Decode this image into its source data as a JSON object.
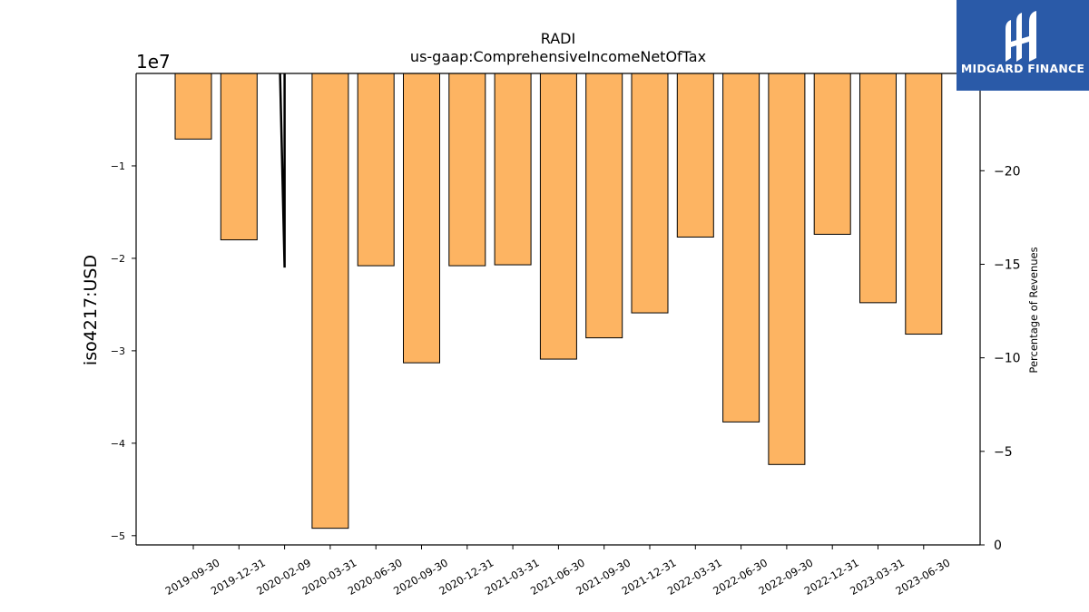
{
  "chart_data": {
    "type": "bar",
    "title": "RADI",
    "subtitle": "us-gaap:ComprehensiveIncomeNetOfTax",
    "ylabel": "iso4217:USD",
    "y_offset_label": "1e7",
    "y2label": "Percentage of Revenues",
    "categories": [
      "2019-09-30",
      "2019-12-31",
      "2020-02-09",
      "2020-03-31",
      "2020-06-30",
      "2020-09-30",
      "2020-12-31",
      "2021-03-31",
      "2021-06-30",
      "2021-09-30",
      "2021-12-31",
      "2022-03-31",
      "2022-06-30",
      "2022-09-30",
      "2022-12-31",
      "2023-03-31",
      "2023-06-30"
    ],
    "values": [
      -7100000,
      -18000000,
      null,
      -49200000,
      -20800000,
      -31300000,
      -20800000,
      -20700000,
      -30900000,
      -28600000,
      -25900000,
      -17700000,
      -37700000,
      -42300000,
      -17400000,
      -24800000,
      -28200000
    ],
    "line_series": {
      "x": [
        "2020-02-09",
        "2020-02-09"
      ],
      "values": [
        0,
        -21000000
      ]
    },
    "ylim": [
      -51000000.0,
      0
    ],
    "yticks": [
      -1,
      -2,
      -3,
      -4,
      -5
    ],
    "y2lim": [
      0,
      -25.2
    ],
    "y2ticks": [
      -20,
      -15,
      -10,
      -5,
      0
    ],
    "bar_color": "#fdb462",
    "grid": false
  },
  "logo": {
    "text": "MIDGARD FINANCE",
    "background": "#2a5aa8"
  }
}
